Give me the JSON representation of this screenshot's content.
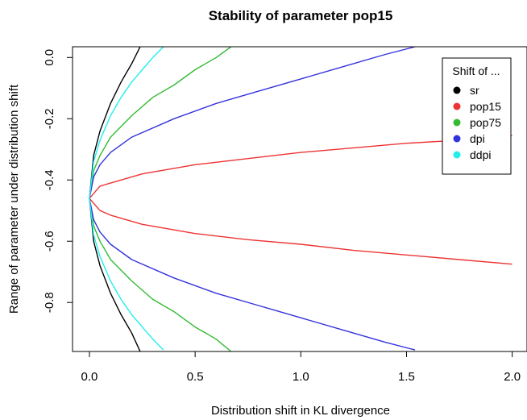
{
  "chart_data": {
    "type": "line",
    "title": "Stability of parameter pop15",
    "xlabel": "Distribution shift in KL divergence",
    "ylabel": "Range of parameter under distribution shift",
    "xlim": [
      -0.08,
      2.07
    ],
    "ylim": [
      -0.96,
      0.035
    ],
    "x_ticks": [
      0.0,
      0.5,
      1.0,
      1.5,
      2.0
    ],
    "x_tick_labels": [
      "0.0",
      "0.5",
      "1.0",
      "1.5",
      "2.0"
    ],
    "y_ticks": [
      0.0,
      -0.2,
      -0.4,
      -0.6,
      -0.8
    ],
    "y_tick_labels": [
      "0.0",
      "-0.2",
      "-0.4",
      "-0.6",
      "-0.8"
    ],
    "grid": false,
    "legend": {
      "title": "Shift of ...",
      "placement": "top-right"
    },
    "center": -0.46,
    "series": [
      {
        "name": "sr",
        "color": "#000000",
        "upper": {
          "x": [
            0,
            0.02,
            0.05,
            0.1,
            0.15,
            0.2,
            0.24
          ],
          "y": [
            -0.46,
            -0.32,
            -0.24,
            -0.15,
            -0.08,
            -0.02,
            0.035
          ]
        },
        "lower": {
          "x": [
            0,
            0.02,
            0.05,
            0.1,
            0.15,
            0.2,
            0.24
          ],
          "y": [
            -0.46,
            -0.6,
            -0.68,
            -0.77,
            -0.84,
            -0.9,
            -0.96
          ]
        }
      },
      {
        "name": "pop15",
        "color": "#ee3333",
        "upper": {
          "x": [
            0,
            0.05,
            0.1,
            0.25,
            0.5,
            0.75,
            1.0,
            1.25,
            1.5,
            1.75,
            2.0
          ],
          "y": [
            -0.46,
            -0.42,
            -0.41,
            -0.38,
            -0.35,
            -0.33,
            -0.31,
            -0.295,
            -0.28,
            -0.27,
            -0.255
          ]
        },
        "lower": {
          "x": [
            0,
            0.05,
            0.1,
            0.25,
            0.5,
            0.75,
            1.0,
            1.25,
            1.5,
            1.75,
            2.0
          ],
          "y": [
            -0.46,
            -0.5,
            -0.515,
            -0.545,
            -0.575,
            -0.595,
            -0.61,
            -0.63,
            -0.645,
            -0.66,
            -0.675
          ]
        }
      },
      {
        "name": "pop75",
        "color": "#33bb33",
        "upper": {
          "x": [
            0,
            0.02,
            0.05,
            0.1,
            0.2,
            0.3,
            0.4,
            0.5,
            0.6,
            0.67
          ],
          "y": [
            -0.46,
            -0.37,
            -0.32,
            -0.26,
            -0.19,
            -0.13,
            -0.09,
            -0.04,
            0.0,
            0.035
          ]
        },
        "lower": {
          "x": [
            0,
            0.02,
            0.05,
            0.1,
            0.2,
            0.3,
            0.4,
            0.5,
            0.6,
            0.67
          ],
          "y": [
            -0.46,
            -0.55,
            -0.6,
            -0.66,
            -0.73,
            -0.79,
            -0.83,
            -0.88,
            -0.92,
            -0.96
          ]
        }
      },
      {
        "name": "dpi",
        "color": "#3333dd",
        "upper": {
          "x": [
            0,
            0.02,
            0.05,
            0.1,
            0.2,
            0.4,
            0.6,
            0.8,
            1.0,
            1.2,
            1.4,
            1.54
          ],
          "y": [
            -0.46,
            -0.39,
            -0.35,
            -0.31,
            -0.26,
            -0.2,
            -0.15,
            -0.11,
            -0.07,
            -0.03,
            0.01,
            0.035
          ]
        },
        "lower": {
          "x": [
            0,
            0.02,
            0.05,
            0.1,
            0.2,
            0.4,
            0.6,
            0.8,
            1.0,
            1.2,
            1.4,
            1.54
          ],
          "y": [
            -0.46,
            -0.53,
            -0.57,
            -0.61,
            -0.66,
            -0.72,
            -0.77,
            -0.81,
            -0.85,
            -0.89,
            -0.93,
            -0.955
          ]
        }
      },
      {
        "name": "ddpi",
        "color": "#22eeee",
        "upper": {
          "x": [
            0,
            0.02,
            0.05,
            0.1,
            0.15,
            0.2,
            0.25,
            0.3,
            0.35
          ],
          "y": [
            -0.46,
            -0.34,
            -0.27,
            -0.19,
            -0.13,
            -0.08,
            -0.04,
            0.0,
            0.035
          ]
        },
        "lower": {
          "x": [
            0,
            0.02,
            0.05,
            0.1,
            0.15,
            0.2,
            0.25,
            0.3,
            0.35
          ],
          "y": [
            -0.46,
            -0.58,
            -0.65,
            -0.73,
            -0.79,
            -0.84,
            -0.88,
            -0.92,
            -0.955
          ]
        }
      }
    ]
  }
}
